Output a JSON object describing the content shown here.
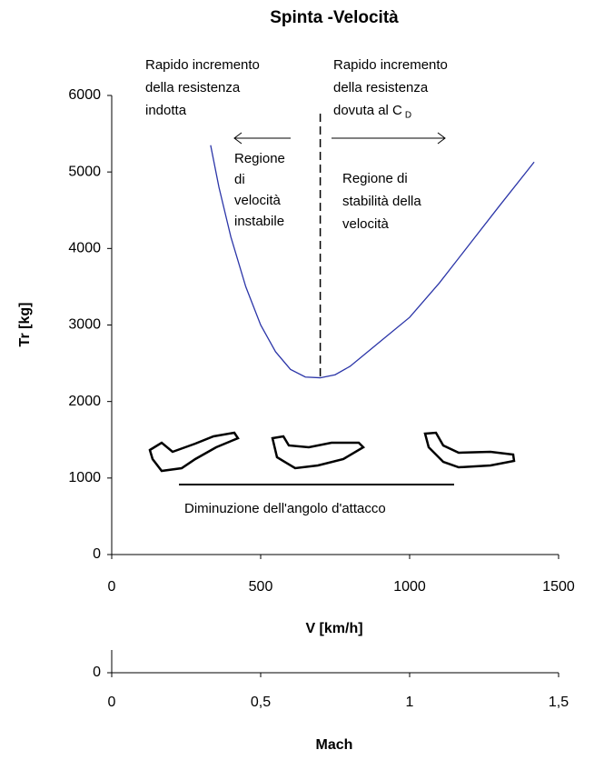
{
  "chart_data": [
    {
      "type": "line",
      "title": "Spinta -Velocità",
      "x": [
        332,
        360,
        400,
        450,
        500,
        550,
        600,
        650,
        700,
        750,
        800,
        900,
        1000,
        1100,
        1200,
        1300,
        1418
      ],
      "series": [
        {
          "color": "#2b35a8",
          "values": [
            5350,
            4800,
            4150,
            3500,
            3000,
            2650,
            2420,
            2320,
            2310,
            2350,
            2460,
            2780,
            3100,
            3550,
            4050,
            4550,
            5130
          ]
        }
      ],
      "xlim": [
        0,
        1500
      ],
      "xticks": [
        0,
        500,
        1000,
        1500
      ],
      "ylim": [
        0,
        6000
      ],
      "yticks": [
        0,
        1000,
        2000,
        3000,
        4000,
        5000,
        6000
      ],
      "xlabel": "V [km/h]",
      "ylabel": "Tr [kg]",
      "annotations": {
        "left_top": [
          "Rapido incremento",
          "della resistenza",
          "indotta"
        ],
        "right_top": [
          "Rapido incremento",
          "della resistenza",
          "dovuta al C"
        ],
        "right_top_subscript": "D",
        "left_region": [
          "Regione",
          "di",
          "velocità",
          "instabile"
        ],
        "right_region": [
          "Regione di",
          "stabilità della",
          "velocità"
        ],
        "bottom": "Diminuzione dell'angolo d'attacco"
      }
    },
    {
      "type": "axis",
      "xlim": [
        0,
        1.5
      ],
      "xticks": [
        0,
        {
          "value": 0.5,
          "label": "0,5"
        },
        1,
        {
          "value": 1.5,
          "label": "1,5"
        }
      ],
      "yticks": [
        0
      ],
      "xlabel": "Mach"
    }
  ]
}
